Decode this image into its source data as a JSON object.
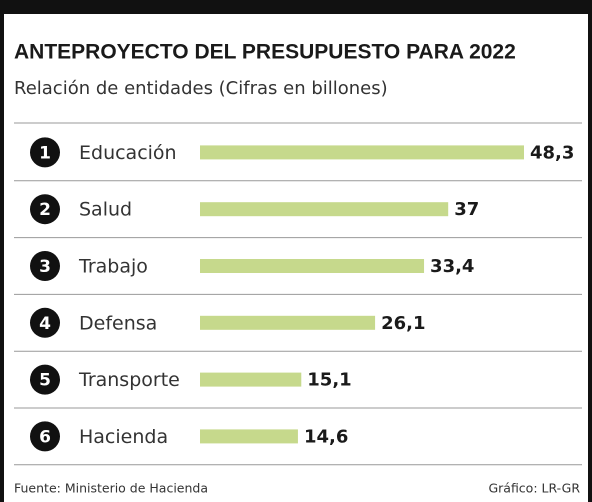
{
  "chart_data": {
    "type": "bar",
    "title": "ANTEPROYECTO DEL PRESUPUESTO PARA 2022",
    "subtitle": "Relación de entidades (Cifras en billones)",
    "ranks": [
      1,
      2,
      3,
      4,
      5,
      6
    ],
    "categories": [
      "Educación",
      "Salud",
      "Trabajo",
      "Defensa",
      "Transporte",
      "Hacienda"
    ],
    "values": [
      48.3,
      37,
      33.4,
      26.1,
      15.1,
      14.6
    ],
    "value_labels": [
      "48,3",
      "37",
      "33,4",
      "26,1",
      "15,1",
      "14,6"
    ],
    "color": "#c6d98c",
    "source": "Fuente: Ministerio de Hacienda",
    "credit": "Gráfico: LR-GR"
  }
}
